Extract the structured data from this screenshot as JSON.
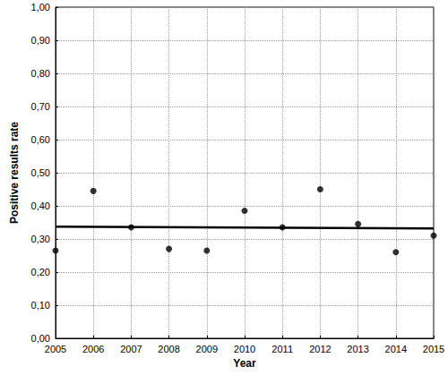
{
  "chart_data": {
    "type": "scatter",
    "x_label": "Year",
    "y_label": "Positive results rate",
    "xlim": [
      2005,
      2015
    ],
    "xticks": [
      2005,
      2006,
      2007,
      2008,
      2009,
      2010,
      2011,
      2012,
      2013,
      2014,
      2015
    ],
    "ylim": [
      0,
      1
    ],
    "yticks": [
      {
        "value": 0,
        "label": "0,00"
      },
      {
        "value": 0.1,
        "label": "0,10"
      },
      {
        "value": 0.2,
        "label": "0,20"
      },
      {
        "value": 0.3,
        "label": "0,30"
      },
      {
        "value": 0.4,
        "label": "0,40"
      },
      {
        "value": 0.5,
        "label": "0,50"
      },
      {
        "value": 0.6,
        "label": "0,60"
      },
      {
        "value": 0.7,
        "label": "0,70"
      },
      {
        "value": 0.8,
        "label": "0,80"
      },
      {
        "value": 0.9,
        "label": "0,90"
      },
      {
        "value": 1,
        "label": "1,00"
      }
    ],
    "grid": true,
    "series": [
      {
        "type": "scatter",
        "color": "#000000",
        "marker": "circle",
        "x": [
          2005,
          2006,
          2007,
          2008,
          2009,
          2010,
          2011,
          2012,
          2013,
          2014,
          2015
        ],
        "values": [
          0.265,
          0.445,
          0.335,
          0.27,
          0.265,
          0.385,
          0.335,
          0.45,
          0.345,
          0.26,
          0.31
        ]
      },
      {
        "type": "line",
        "color": "#000000",
        "line_style": "solid",
        "x": [
          2005,
          2015
        ],
        "values": [
          0.337,
          0.332
        ]
      }
    ]
  }
}
